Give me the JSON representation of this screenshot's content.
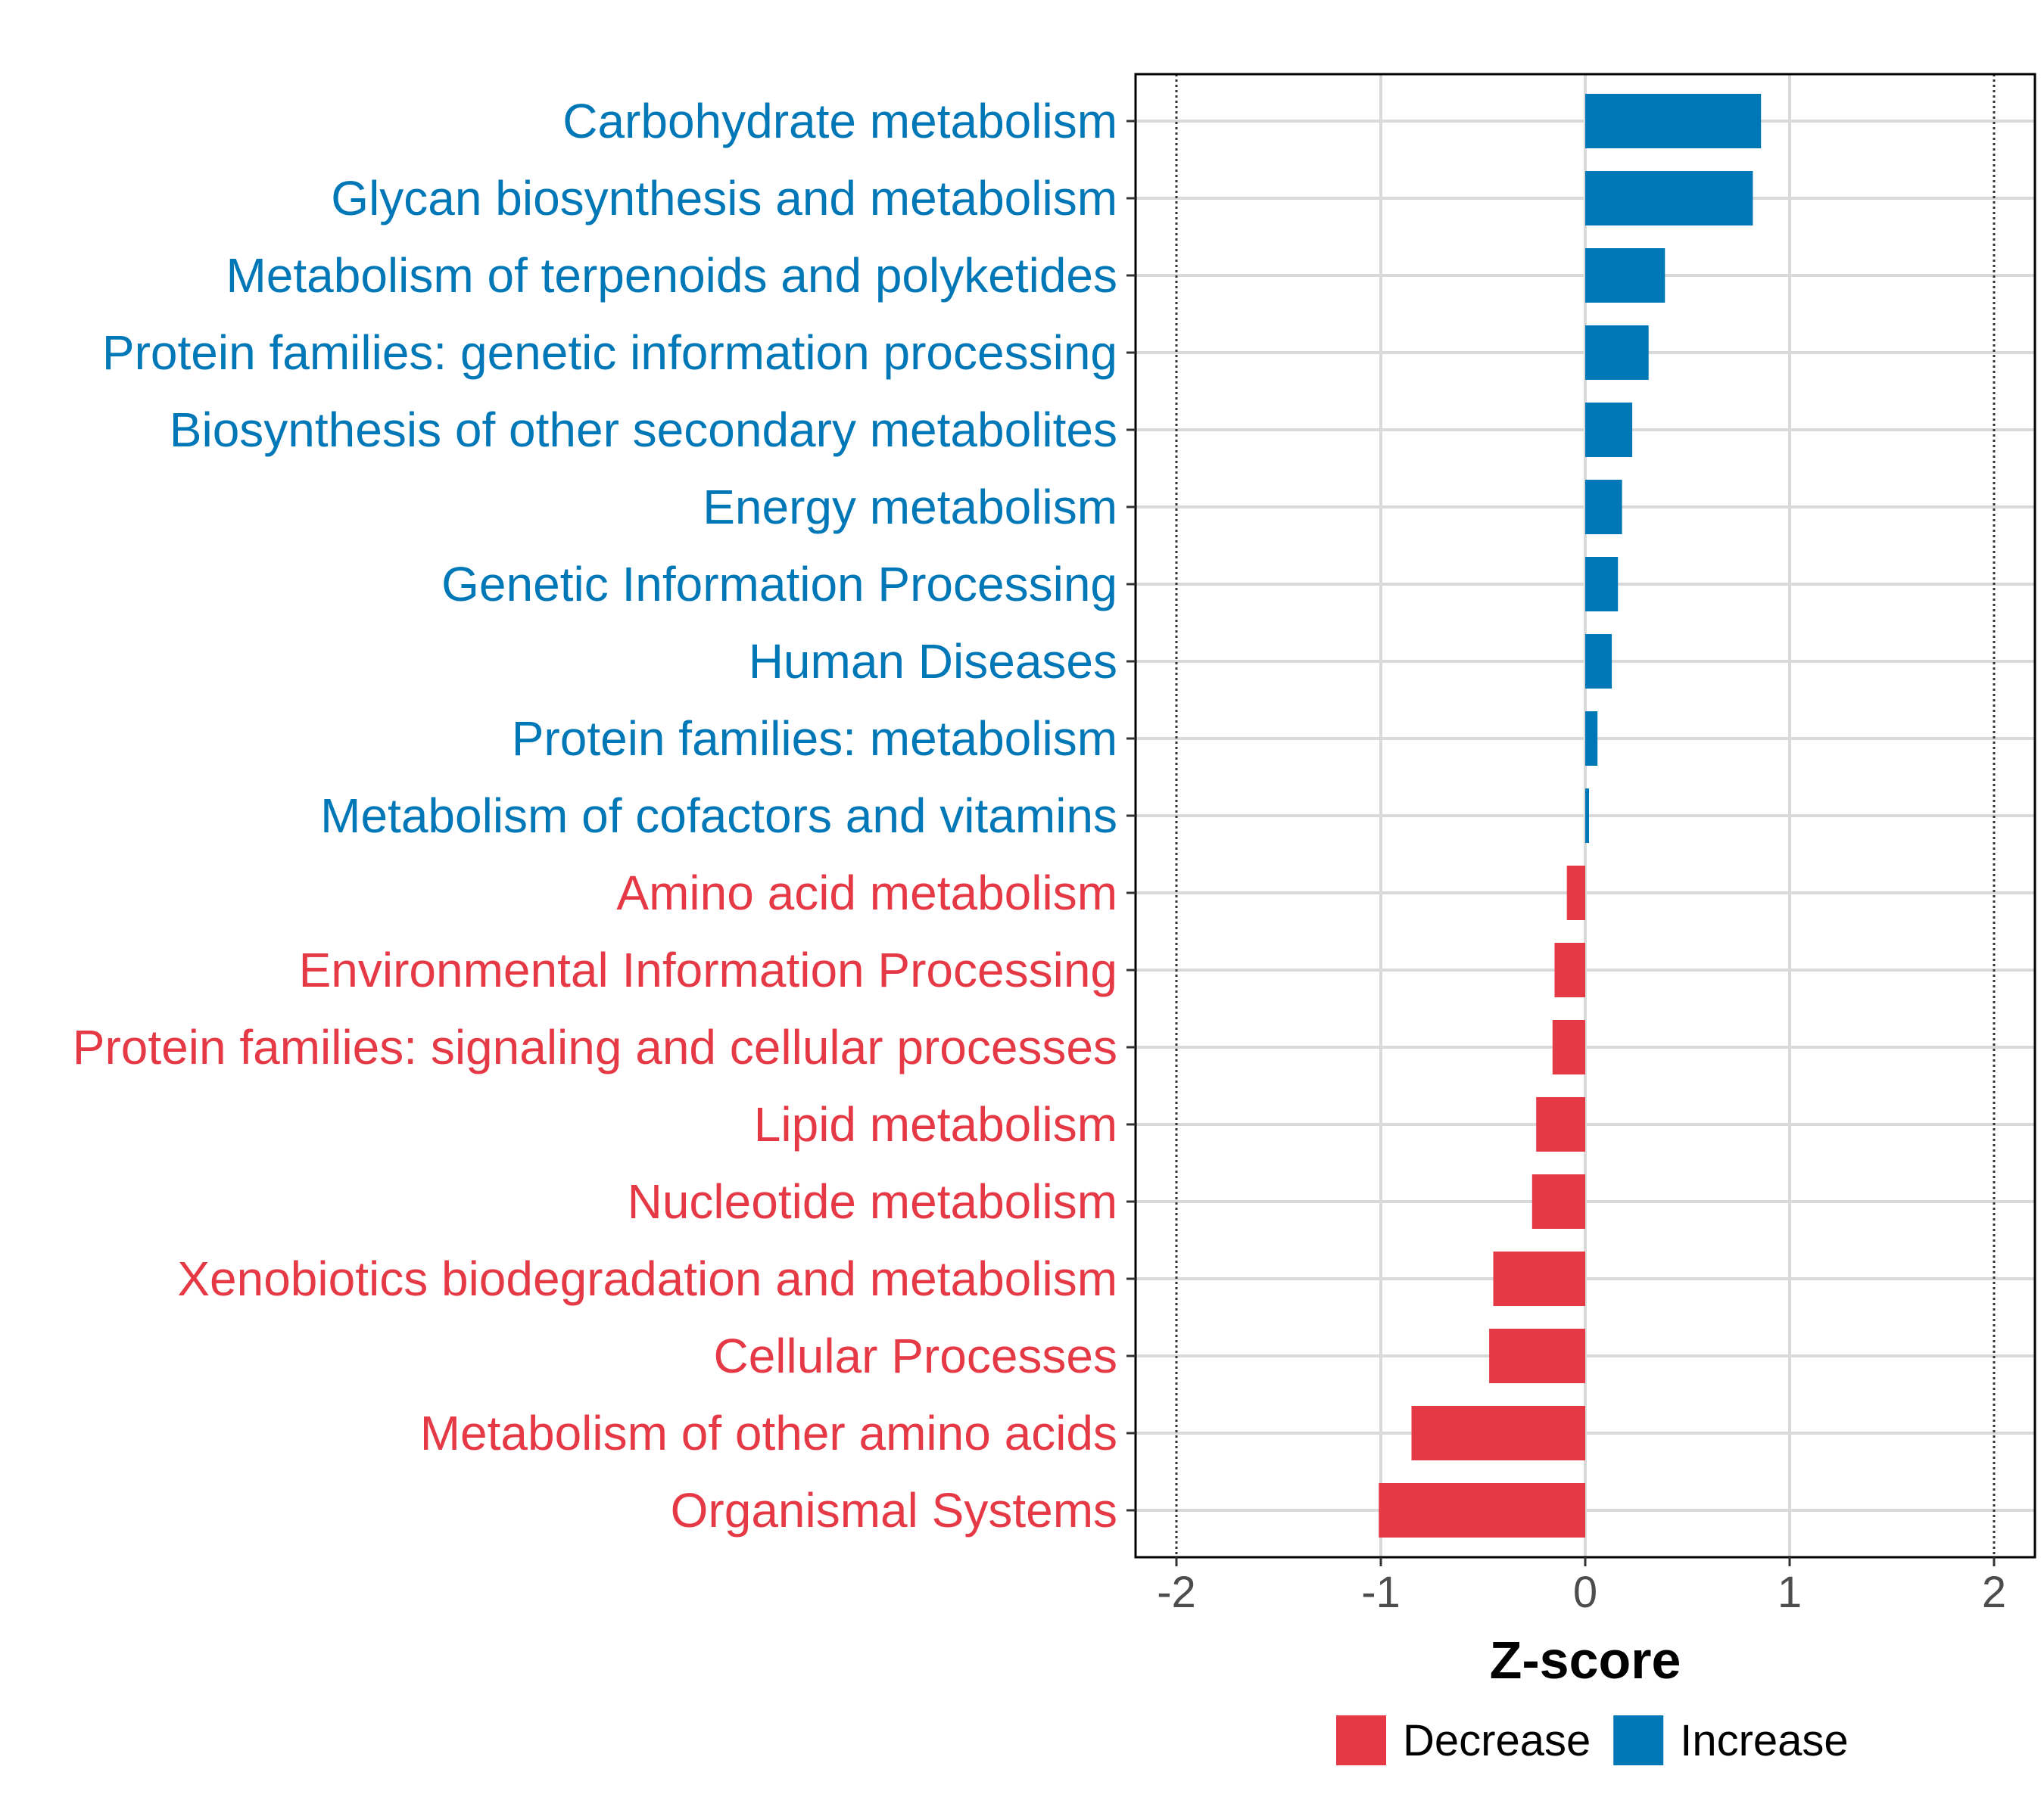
{
  "chart_data": {
    "type": "bar",
    "orientation": "horizontal",
    "categories": [
      "Carbohydrate metabolism",
      "Glycan biosynthesis and metabolism",
      "Metabolism of terpenoids and polyketides",
      "Protein families: genetic information processing",
      "Biosynthesis of other secondary metabolites",
      "Energy metabolism",
      "Genetic Information Processing",
      "Human Diseases",
      "Protein families: metabolism",
      "Metabolism of cofactors and vitamins",
      "Amino acid metabolism",
      "Environmental Information Processing",
      "Protein families: signaling and cellular processes",
      "Lipid metabolism",
      "Nucleotide metabolism",
      "Xenobiotics biodegradation and metabolism",
      "Cellular Processes",
      "Metabolism of other amino acids",
      "Organismal Systems"
    ],
    "values": [
      0.86,
      0.82,
      0.39,
      0.31,
      0.23,
      0.18,
      0.16,
      0.13,
      0.06,
      0.01,
      -0.09,
      -0.15,
      -0.16,
      -0.24,
      -0.26,
      -0.45,
      -0.47,
      -0.85,
      -1.01
    ],
    "groups": [
      "Increase",
      "Increase",
      "Increase",
      "Increase",
      "Increase",
      "Increase",
      "Increase",
      "Increase",
      "Increase",
      "Increase",
      "Decrease",
      "Decrease",
      "Decrease",
      "Decrease",
      "Decrease",
      "Decrease",
      "Decrease",
      "Decrease",
      "Decrease"
    ],
    "xlim": [
      -2.2,
      2.2
    ],
    "xticks": [
      -2,
      -1,
      0,
      1,
      2
    ],
    "xtick_labels": [
      "-2",
      "-1",
      "0",
      "1",
      "2"
    ],
    "reference_lines": [
      -2,
      2
    ],
    "xlabel": "Z-score",
    "ylabel": "",
    "title": "",
    "grid": true,
    "legend": {
      "position": "bottom",
      "entries": [
        {
          "label": "Decrease",
          "color": "#e63946"
        },
        {
          "label": "Increase",
          "color": "#0077b6"
        }
      ]
    },
    "colors": {
      "Increase": "#0077b6",
      "Decrease": "#e63946"
    }
  }
}
